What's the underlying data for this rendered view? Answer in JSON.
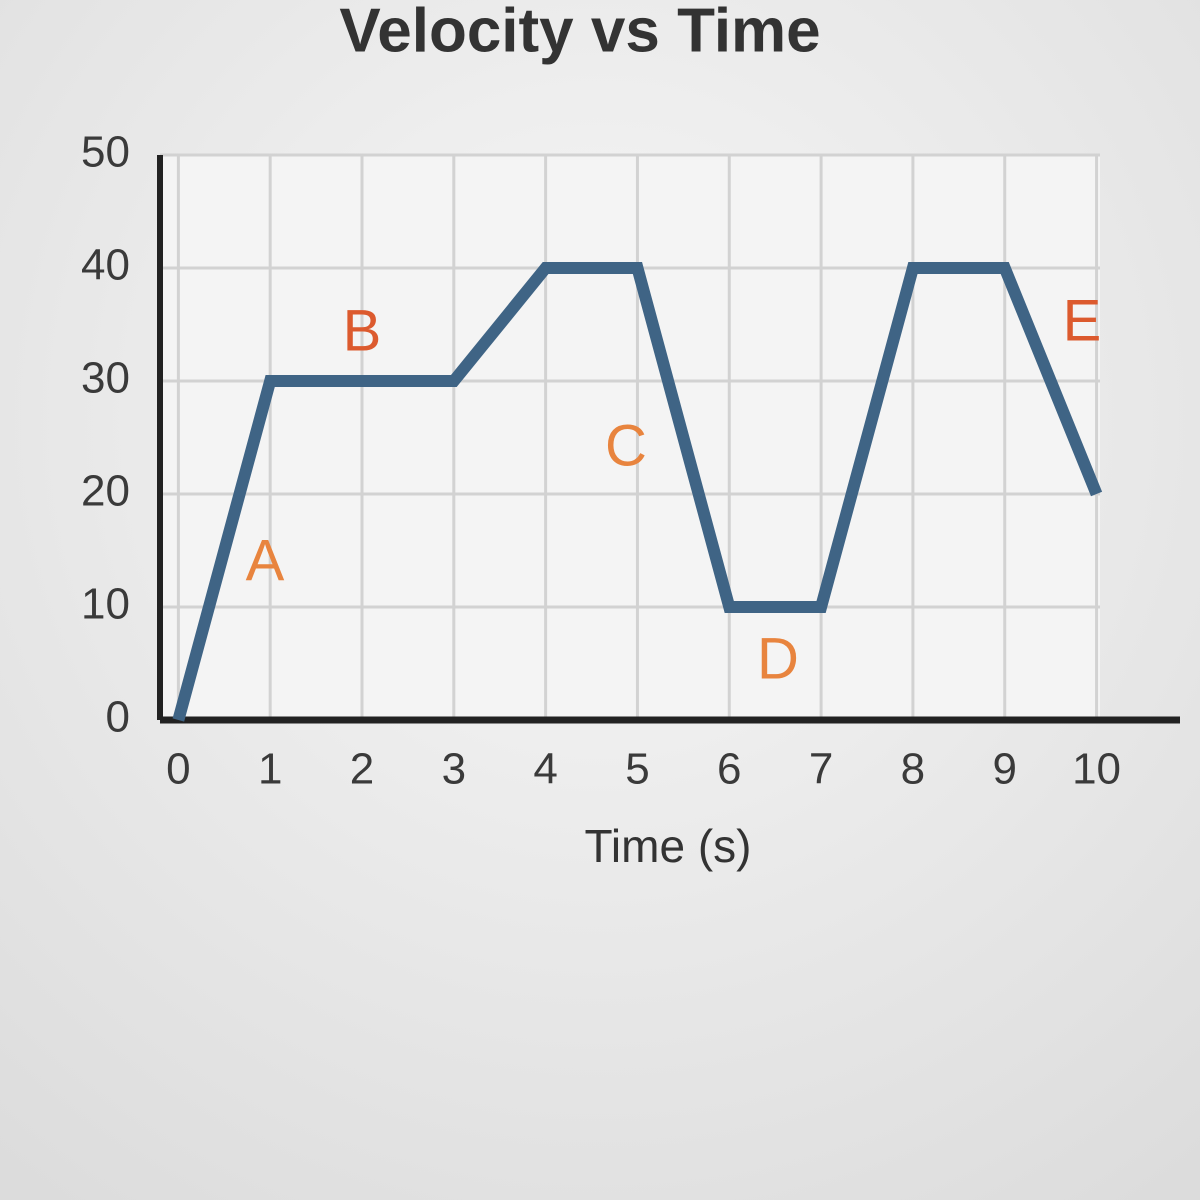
{
  "chart_data": {
    "type": "line",
    "title": "Velocity vs Time",
    "x_label": "Time (s)",
    "x": [
      0,
      1,
      2,
      3,
      4,
      5,
      6,
      7,
      8,
      9,
      10
    ],
    "series": [
      {
        "color": "#3f6485",
        "values": [
          0,
          30,
          30,
          30,
          40,
          40,
          10,
          10,
          40,
          40,
          20
        ]
      }
    ],
    "xlim": [
      -0.2,
      10.8
    ],
    "xticks": [
      0,
      1,
      2,
      3,
      4,
      5,
      6,
      7,
      8,
      9,
      10
    ],
    "ylim": [
      0,
      50
    ],
    "yticks": [
      0,
      10,
      20,
      30,
      40,
      50
    ],
    "grid": true,
    "annotations": [
      {
        "text": "A",
        "color": "#e8843e"
      },
      {
        "text": "B",
        "color": "#dc5a2e"
      },
      {
        "text": "C",
        "color": "#e8843e"
      },
      {
        "text": "D",
        "color": "#e8843e"
      },
      {
        "text": "E",
        "color": "#dc5a2e"
      }
    ]
  }
}
